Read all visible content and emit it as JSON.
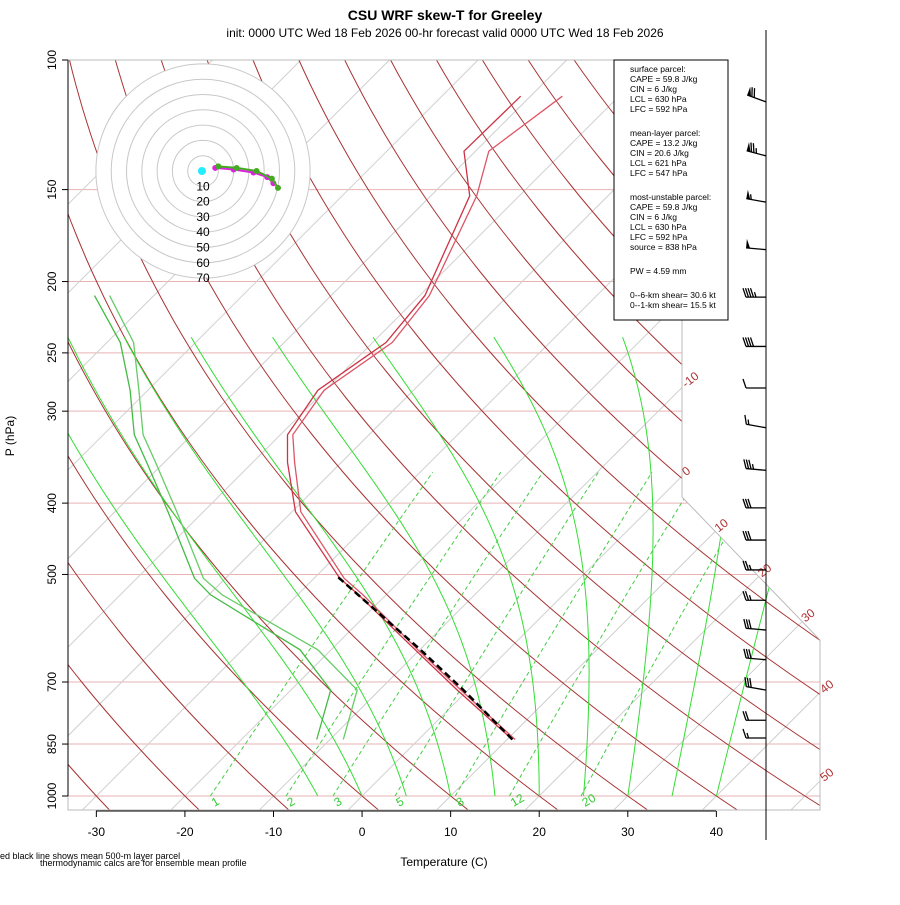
{
  "chart_data": {
    "type": "skewt",
    "title": "CSU WRF skew-T for Greeley",
    "subtitle": "init: 0000 UTC Wed 18 Feb 2026     00-hr forecast valid 0000 UTC Wed 18 Feb 2026",
    "xlabel": "Temperature (C)",
    "ylabel": "P (hPa)",
    "xlim": [
      -33.2,
      51.7
    ],
    "xticks": [
      -30,
      -20,
      -10,
      0,
      10,
      20,
      30,
      40
    ],
    "ylim": [
      1000,
      100
    ],
    "yticks": [
      1000,
      850,
      700,
      500,
      400,
      300,
      250,
      200,
      150,
      100
    ],
    "log_y": true,
    "isotherms": [
      -100,
      -90,
      -80,
      -70,
      -60,
      -50,
      -40,
      -30,
      -20
    ],
    "isotherm_labels": [
      -10,
      0,
      10,
      20,
      30,
      40,
      50
    ],
    "dry_adiabats": [
      -30,
      -20,
      -10,
      0,
      10,
      20,
      30,
      40,
      50,
      60,
      70,
      80,
      90,
      100,
      110,
      120,
      130,
      140,
      150,
      160,
      170
    ],
    "moist_adiabats": [
      -5,
      0,
      5,
      10,
      15,
      20,
      25,
      30,
      35,
      40
    ],
    "mixing_ratios": [
      1,
      2,
      3,
      5,
      8,
      12,
      20
    ],
    "pressure": [
      838,
      718,
      633,
      533,
      506,
      411,
      352,
      323,
      281,
      242,
      209,
      153,
      133,
      112
    ],
    "temperature": [
      {
        "color": "#cc3344",
        "values": [
          10.6,
          -1.2,
          -10.5,
          -23.1,
          -27.1,
          -39.6,
          -46.1,
          -49.2,
          -50.8,
          -48.5,
          -49.4,
          -55.6,
          -61.3,
          -61.1
        ]
      },
      {
        "color": "#dd5566",
        "values": [
          10.9,
          -0.8,
          -10.2,
          -22.6,
          -26.6,
          -39.0,
          -45.3,
          -48.6,
          -50.1,
          -47.8,
          -48.9,
          -54.8,
          -58.5,
          -56.4
        ]
      }
    ],
    "dewpoint": [
      {
        "color": "#44bb44",
        "values": [
          -11.5,
          -15.5,
          -23.5,
          -39.8,
          -43.5,
          -54,
          -62,
          -66.5,
          -72,
          -78.5,
          -86.7,
          null,
          null,
          null
        ]
      },
      {
        "color": "#66cc66",
        "values": [
          -8.5,
          -12.5,
          -21.5,
          -38.5,
          -42.5,
          -53,
          -61,
          -65.5,
          -71,
          -77,
          -85,
          null,
          null,
          null
        ]
      }
    ],
    "parcel": {
      "color": "#000000",
      "pressure": [
        838,
        718,
        633,
        503
      ],
      "values": [
        10.6,
        -0.5,
        -9.9,
        -27.6
      ]
    },
    "hodograph": {
      "rings": [
        10,
        20,
        30,
        40,
        50,
        60,
        70
      ],
      "series": [
        {
          "color": "#dd22dd",
          "u": [
            8,
            20,
            33,
            42,
            46
          ],
          "v": [
            2,
            1,
            -1,
            -4,
            -8
          ]
        },
        {
          "color": "#44aa22",
          "u": [
            10,
            22,
            35,
            45,
            49
          ],
          "v": [
            3,
            2,
            0,
            -5,
            -11
          ]
        }
      ],
      "storm_motion": {
        "color": "#22eeff",
        "u": -0.7,
        "v": 0
      }
    },
    "winds": {
      "pressure": [
        114,
        135,
        156,
        181,
        210,
        245,
        279,
        316,
        361,
        406,
        449,
        493,
        542,
        595,
        653,
        718,
        789,
        834
      ],
      "speed": [
        70,
        75,
        55,
        50,
        45,
        40,
        10,
        15,
        35,
        30,
        30,
        25,
        25,
        30,
        30,
        30,
        20,
        15
      ],
      "direction": [
        290,
        285,
        280,
        275,
        270,
        270,
        270,
        280,
        275,
        270,
        270,
        270,
        270,
        275,
        275,
        280,
        270,
        270
      ]
    },
    "parcel_info": [
      [
        "surface parcel:",
        "CAPE = 59.8 J/kg",
        "CIN = 6 J/kg",
        "LCL = 630 hPa",
        "LFC = 592 hPa"
      ],
      [
        "mean-layer parcel:",
        "CAPE = 13.2 J/kg",
        "CIN = 20.6 J/kg",
        "LCL = 621 hPa",
        "LFC = 547 hPa"
      ],
      [
        "most-unstable parcel:",
        "CAPE = 59.8 J/kg",
        "CIN = 6 J/kg",
        "LCL = 630 hPa",
        "LFC = 592 hPa",
        "source = 838 hPa"
      ],
      [
        "PW =  4.59 mm"
      ],
      [
        "0--6-km shear= 30.6 kt",
        "0--1-km shear= 15.5 kt"
      ]
    ],
    "footnotes": [
      "ed black line shows mean 500-m layer parcel",
      "thermodynamic calcs are for ensemble mean profile"
    ]
  }
}
